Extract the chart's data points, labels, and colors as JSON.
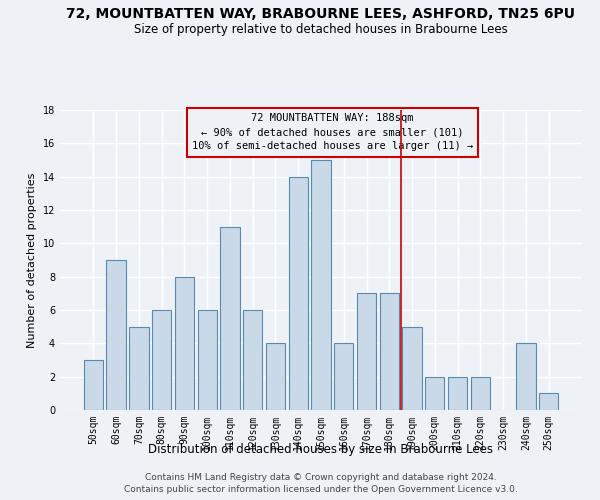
{
  "title": "72, MOUNTBATTEN WAY, BRABOURNE LEES, ASHFORD, TN25 6PU",
  "subtitle": "Size of property relative to detached houses in Brabourne Lees",
  "xlabel": "Distribution of detached houses by size in Brabourne Lees",
  "ylabel": "Number of detached properties",
  "footer1": "Contains HM Land Registry data © Crown copyright and database right 2024.",
  "footer2": "Contains public sector information licensed under the Open Government Licence v3.0.",
  "categories": [
    "50sqm",
    "60sqm",
    "70sqm",
    "80sqm",
    "90sqm",
    "100sqm",
    "110sqm",
    "120sqm",
    "130sqm",
    "140sqm",
    "150sqm",
    "160sqm",
    "170sqm",
    "180sqm",
    "190sqm",
    "200sqm",
    "210sqm",
    "220sqm",
    "230sqm",
    "240sqm",
    "250sqm"
  ],
  "values": [
    3,
    9,
    5,
    6,
    8,
    6,
    11,
    6,
    4,
    14,
    15,
    4,
    7,
    7,
    5,
    2,
    2,
    2,
    0,
    4,
    1
  ],
  "bar_color": "#c9d9e8",
  "bar_edge_color": "#5a8ab0",
  "bar_edge_width": 0.8,
  "property_line_color": "#cc0000",
  "annotation_text": "72 MOUNTBATTEN WAY: 188sqm\n← 90% of detached houses are smaller (101)\n10% of semi-detached houses are larger (11) →",
  "annotation_box_color": "#cc0000",
  "ylim": [
    0,
    18
  ],
  "yticks": [
    0,
    2,
    4,
    6,
    8,
    10,
    12,
    14,
    16,
    18
  ],
  "background_color": "#eef2f7",
  "grid_color": "#ffffff",
  "title_fontsize": 10,
  "subtitle_fontsize": 8.5,
  "xlabel_fontsize": 8.5,
  "ylabel_fontsize": 8,
  "tick_fontsize": 7,
  "annotation_fontsize": 7.5,
  "footer_fontsize": 6.5
}
